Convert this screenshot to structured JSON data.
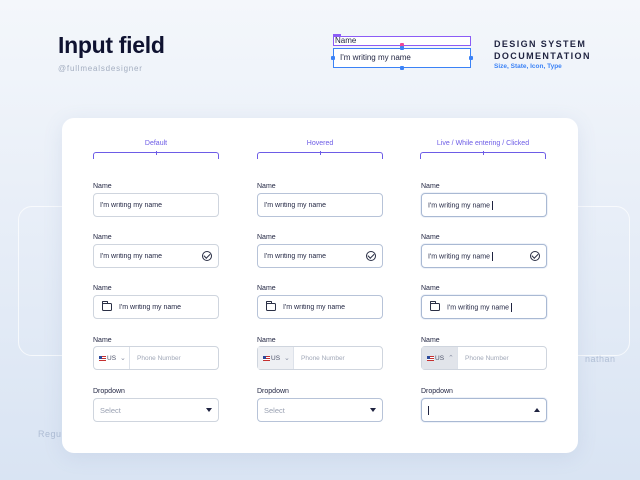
{
  "header": {
    "title": "Input field",
    "handle": "@fullmealsdesigner",
    "doc_title": "DESIGN SYSTEM DOCUMENTATION",
    "doc_subtitle": "Size, State, Icon, Type"
  },
  "spec": {
    "label": "Name",
    "value": "I'm writing my name"
  },
  "background": {
    "left_text": "Regu",
    "right_text": "nathan"
  },
  "columns": [
    "Default",
    "Hovered",
    "Live / While entering / Clicked"
  ],
  "fields": {
    "name_label": "Name",
    "value": "I'm writing my name",
    "country_code": "US",
    "phone_placeholder": "Phone Number",
    "dropdown_label": "Dropdown",
    "dropdown_placeholder": "Select"
  },
  "colors": {
    "accent": "#6d5ce6",
    "spec_blue": "#3b82f6",
    "spec_purple": "#8b5cf6"
  }
}
